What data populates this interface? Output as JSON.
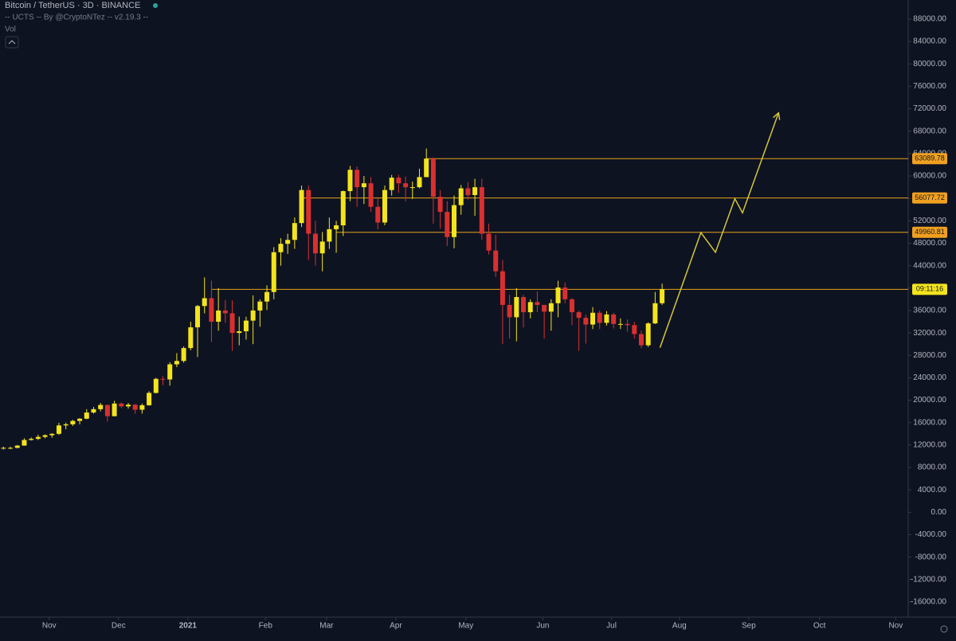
{
  "header": {
    "title": "Bitcoin / TetherUS · 3D · BINANCE",
    "indicator": "-- UCTS -- By @CryptoNTez -- v2.19.3 --",
    "volume": "Vol"
  },
  "chart_data": {
    "type": "candlestick",
    "up_color": "#f4e41c",
    "down_color": "#d9302f",
    "level_color": "#e3a21a",
    "xlim": [
      -0.5,
      130.5
    ],
    "xticks": [
      {
        "value": 6.6,
        "label": "Nov"
      },
      {
        "value": 16.6,
        "label": "Dec"
      },
      {
        "value": 26.6,
        "label": "2021"
      },
      {
        "value": 37.8,
        "label": "Feb"
      },
      {
        "value": 46.6,
        "label": "Mar"
      },
      {
        "value": 56.6,
        "label": "Apr"
      },
      {
        "value": 66.7,
        "label": "May"
      },
      {
        "value": 77.8,
        "label": "Jun"
      },
      {
        "value": 87.7,
        "label": "Jul"
      },
      {
        "value": 97.5,
        "label": "Aug"
      },
      {
        "value": 107.5,
        "label": "Sep"
      },
      {
        "value": 117.7,
        "label": "Oct"
      },
      {
        "value": 128.7,
        "label": "Nov"
      }
    ],
    "ylim": [
      -18700,
      91400
    ],
    "yticks": [
      {
        "value": 88000,
        "label": "88000.00"
      },
      {
        "value": 84000,
        "label": "84000.00"
      },
      {
        "value": 80000,
        "label": "80000.00"
      },
      {
        "value": 76000,
        "label": "76000.00"
      },
      {
        "value": 72000,
        "label": "72000.00"
      },
      {
        "value": 68000,
        "label": "68000.00"
      },
      {
        "value": 64000,
        "label": "64000.00"
      },
      {
        "value": 60000,
        "label": "60000.00"
      },
      {
        "value": 56000,
        "label": "56000.00"
      },
      {
        "value": 52000,
        "label": "52000.00"
      },
      {
        "value": 48000,
        "label": "48000.00"
      },
      {
        "value": 44000,
        "label": "44000.00"
      },
      {
        "value": 40000,
        "label": "40000.00"
      },
      {
        "value": 36000,
        "label": "36000.00"
      },
      {
        "value": 32000,
        "label": "32000.00"
      },
      {
        "value": 28000,
        "label": "28000.00"
      },
      {
        "value": 24000,
        "label": "24000.00"
      },
      {
        "value": 20000,
        "label": "20000.00"
      },
      {
        "value": 16000,
        "label": "16000.00"
      },
      {
        "value": 12000,
        "label": "12000.00"
      },
      {
        "value": 8000,
        "label": "8000.00"
      },
      {
        "value": 4000,
        "label": "4000.00"
      },
      {
        "value": 0,
        "label": "0.00"
      },
      {
        "value": -4000,
        "label": "-4000.00"
      },
      {
        "value": -8000,
        "label": "-8000.00"
      },
      {
        "value": -12000,
        "label": "-12000.00"
      },
      {
        "value": -16000,
        "label": "-16000.00"
      }
    ],
    "ohlc": [
      [
        11380,
        11700,
        11200,
        11500
      ],
      [
        11500,
        11720,
        11250,
        11500
      ],
      [
        11500,
        12000,
        11400,
        11900
      ],
      [
        11900,
        13200,
        11900,
        12900
      ],
      [
        12900,
        13350,
        12800,
        13100
      ],
      [
        13100,
        13860,
        12900,
        13450
      ],
      [
        13450,
        13900,
        13200,
        13750
      ],
      [
        13750,
        14100,
        13300,
        14000
      ],
      [
        14000,
        15960,
        13800,
        15500
      ],
      [
        15500,
        16000,
        14800,
        15700
      ],
      [
        15700,
        16500,
        15400,
        16300
      ],
      [
        16300,
        16800,
        15700,
        16700
      ],
      [
        16700,
        18400,
        16600,
        17800
      ],
      [
        17800,
        18800,
        17600,
        18400
      ],
      [
        18400,
        19500,
        18000,
        19150
      ],
      [
        19150,
        19200,
        16200,
        17150
      ],
      [
        17150,
        19900,
        17100,
        19400
      ],
      [
        19400,
        19600,
        18600,
        18900
      ],
      [
        18900,
        19500,
        18500,
        19200
      ],
      [
        19200,
        19300,
        17600,
        18300
      ],
      [
        18300,
        19400,
        17600,
        19100
      ],
      [
        19100,
        21600,
        19000,
        21300
      ],
      [
        21300,
        24000,
        21200,
        23800
      ],
      [
        23800,
        24300,
        22700,
        23700
      ],
      [
        23700,
        26800,
        22600,
        26400
      ],
      [
        26400,
        28400,
        25900,
        27000
      ],
      [
        27000,
        29600,
        26700,
        29300
      ],
      [
        29300,
        34000,
        28900,
        33000
      ],
      [
        33000,
        37000,
        27700,
        36800
      ],
      [
        36800,
        41900,
        35500,
        38200
      ],
      [
        38200,
        41300,
        30400,
        34000
      ],
      [
        34000,
        40000,
        32400,
        36000
      ],
      [
        36000,
        37900,
        33800,
        35500
      ],
      [
        35500,
        37800,
        28800,
        32000
      ],
      [
        32000,
        34900,
        29800,
        32300
      ],
      [
        32300,
        34900,
        30800,
        34200
      ],
      [
        34200,
        38700,
        30000,
        36000
      ],
      [
        36000,
        38000,
        33100,
        37600
      ],
      [
        37600,
        40500,
        36100,
        39300
      ],
      [
        39300,
        47300,
        38000,
        46400
      ],
      [
        46400,
        48900,
        44000,
        47900
      ],
      [
        47900,
        49700,
        46100,
        48600
      ],
      [
        48600,
        52600,
        47000,
        51600
      ],
      [
        51600,
        58300,
        50900,
        57500
      ],
      [
        57500,
        58300,
        45000,
        49700
      ],
      [
        49700,
        52000,
        44000,
        46200
      ],
      [
        46200,
        50000,
        43000,
        48300
      ],
      [
        48300,
        52600,
        47000,
        50500
      ],
      [
        50500,
        52000,
        46300,
        51200
      ],
      [
        51200,
        57400,
        49300,
        57300
      ],
      [
        57300,
        61800,
        55500,
        61100
      ],
      [
        61100,
        61700,
        54500,
        58000
      ],
      [
        58000,
        60000,
        55000,
        58700
      ],
      [
        58700,
        59800,
        53600,
        54500
      ],
      [
        54500,
        56000,
        50500,
        51700
      ],
      [
        51700,
        58300,
        51200,
        57500
      ],
      [
        57500,
        60200,
        56500,
        59700
      ],
      [
        59700,
        60200,
        57000,
        58700
      ],
      [
        58700,
        59900,
        55500,
        58000
      ],
      [
        58000,
        59000,
        55900,
        58000
      ],
      [
        58000,
        61300,
        57800,
        59800
      ],
      [
        59800,
        64900,
        59800,
        63100
      ],
      [
        63100,
        63300,
        51500,
        56300
      ],
      [
        56300,
        57500,
        50600,
        53600
      ],
      [
        53600,
        55500,
        47500,
        49100
      ],
      [
        49100,
        56500,
        47100,
        54800
      ],
      [
        54800,
        58400,
        53100,
        57800
      ],
      [
        57800,
        58900,
        55800,
        56600
      ],
      [
        56600,
        59500,
        52900,
        58000
      ],
      [
        58000,
        59500,
        48600,
        49700
      ],
      [
        49700,
        51500,
        46000,
        46700
      ],
      [
        46700,
        49500,
        42000,
        43000
      ],
      [
        43000,
        45000,
        30000,
        37000
      ],
      [
        37000,
        38800,
        31000,
        34800
      ],
      [
        34800,
        40000,
        30500,
        38400
      ],
      [
        38400,
        38800,
        33000,
        35700
      ],
      [
        35700,
        38000,
        34600,
        37500
      ],
      [
        37500,
        39400,
        35700,
        37000
      ],
      [
        37000,
        37000,
        31000,
        35800
      ],
      [
        35800,
        38000,
        32400,
        37300
      ],
      [
        37300,
        41300,
        34800,
        40100
      ],
      [
        40100,
        41000,
        37300,
        38000
      ],
      [
        38000,
        38200,
        33400,
        35700
      ],
      [
        35700,
        36000,
        28800,
        34700
      ],
      [
        34700,
        35300,
        30100,
        33500
      ],
      [
        33500,
        36600,
        32700,
        35600
      ],
      [
        35600,
        36000,
        32700,
        33800
      ],
      [
        33800,
        35900,
        33300,
        35300
      ],
      [
        35300,
        35600,
        32800,
        33600
      ],
      [
        33600,
        34600,
        32700,
        33600
      ],
      [
        33600,
        34400,
        32200,
        33400
      ],
      [
        33400,
        34000,
        31000,
        31800
      ],
      [
        31800,
        32400,
        29300,
        29800
      ],
      [
        29800,
        33900,
        29500,
        33700
      ],
      [
        33700,
        39300,
        33600,
        37300
      ],
      [
        37300,
        40800,
        37000,
        39800
      ]
    ],
    "levels": [
      63089.78,
      56077.72,
      49960.81,
      {
        "value": 39780,
        "label": "09:11:16"
      }
    ],
    "projection": {
      "x": [
        94.7,
        100.6,
        102.7,
        105.5,
        106.6,
        111.8
      ],
      "y": [
        29380,
        49900,
        46390,
        55950,
        53420,
        71270
      ]
    }
  }
}
